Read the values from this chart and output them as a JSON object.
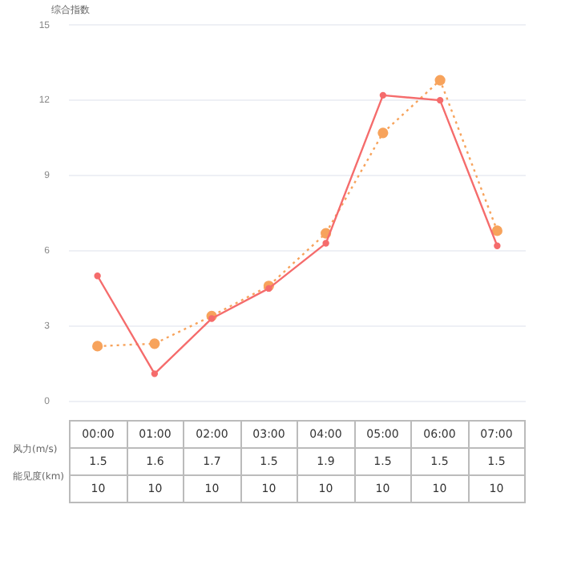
{
  "chart_data": {
    "type": "line",
    "ylabel": "综合指数",
    "categories": [
      "00:00",
      "01:00",
      "02:00",
      "03:00",
      "04:00",
      "05:00",
      "06:00",
      "07:00"
    ],
    "series": [
      {
        "color": "#f56c6c",
        "values": [
          5.0,
          1.1,
          3.3,
          4.5,
          6.3,
          12.2,
          12.0,
          6.2
        ],
        "line_style": "solid"
      },
      {
        "color": "#f7a35c",
        "values": [
          2.2,
          2.3,
          3.4,
          4.6,
          6.7,
          10.7,
          12.8,
          6.8
        ],
        "line_style": "dotted"
      }
    ],
    "ylim": [
      0,
      15
    ],
    "yticks": [
      0,
      3,
      6,
      9,
      12,
      15
    ],
    "grid": "y",
    "legend": false,
    "marker": "circle",
    "tick_labels": "y",
    "annotations": [
      "风力(m/s)",
      "1.5",
      "1.6",
      "1.7",
      "1.5",
      "1.9",
      "1.5",
      "1.5",
      "1.5",
      "能见度(km)",
      "10",
      "10",
      "10",
      "10",
      "10",
      "10",
      "10",
      "10"
    ]
  }
}
